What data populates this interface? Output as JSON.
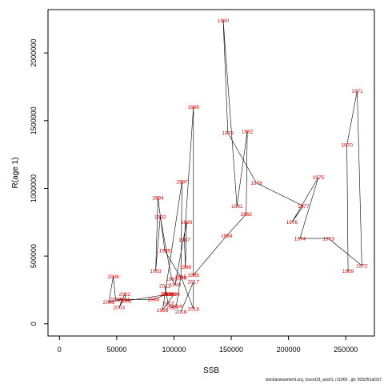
{
  "chart_data": {
    "type": "scatter",
    "title": "",
    "xlabel": "SSB",
    "ylabel": "R(age 1)",
    "xlim": [
      -10000,
      275000
    ],
    "ylim": [
      -90000,
      2320000
    ],
    "x_ticks": [
      0,
      50000,
      100000,
      150000,
      200000,
      250000
    ],
    "y_ticks": [
      0,
      500000,
      1000000,
      1500000,
      2000000
    ],
    "connect_points": "in year order",
    "point_style": "year label",
    "point_color": "#e00000",
    "line_color": "#000000",
    "grid": false,
    "years": [
      1969,
      1970,
      1971,
      1972,
      1973,
      1974,
      1975,
      1976,
      1977,
      1978,
      1979,
      1980,
      1981,
      1982,
      1983,
      1984,
      1985,
      1986,
      1987,
      1988,
      1989,
      1990,
      1991,
      1992,
      1993,
      1994,
      1995,
      1996,
      1997,
      1998,
      1999,
      2000,
      2001,
      2002,
      2003,
      2004,
      2005,
      2006,
      2007,
      2008,
      2009,
      2010,
      2011,
      2012,
      2013,
      2014,
      2015,
      2016,
      2017,
      2018
    ],
    "x": [
      252000,
      251000,
      260000,
      264000,
      235000,
      210000,
      226000,
      203000,
      213000,
      172000,
      147000,
      143000,
      155000,
      164000,
      163000,
      146000,
      117000,
      117000,
      109000,
      110000,
      111000,
      101000,
      98000,
      88000,
      84000,
      86000,
      92000,
      106000,
      107000,
      90000,
      100000,
      97000,
      58000,
      57000,
      52000,
      56000,
      43000,
      47000,
      49000,
      82000,
      94000,
      93000,
      92000,
      95000,
      98000,
      102000,
      106000,
      117000,
      117000,
      106000
    ],
    "y": [
      390000,
      1320000,
      1720000,
      430000,
      630000,
      630000,
      1080000,
      750000,
      870000,
      1040000,
      1410000,
      2240000,
      870000,
      1420000,
      810000,
      650000,
      360000,
      1600000,
      620000,
      420000,
      750000,
      290000,
      330000,
      790000,
      390000,
      930000,
      540000,
      340000,
      1050000,
      100000,
      220000,
      220000,
      170000,
      220000,
      120000,
      180000,
      160000,
      350000,
      180000,
      180000,
      220000,
      220000,
      280000,
      150000,
      120000,
      130000,
      350000,
      110000,
      310000,
      90000
    ]
  },
  "footer": "stockassessment.org, nscod19_ass01, r11060 , git: 503cf91af157"
}
